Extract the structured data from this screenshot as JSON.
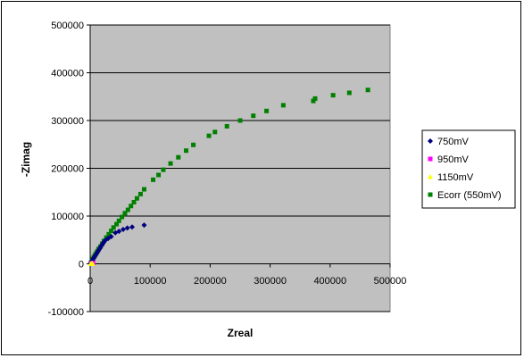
{
  "chart_data": {
    "type": "scatter",
    "title": "",
    "xlabel": "Zreal",
    "ylabel": "-Zimag",
    "xlim": [
      0,
      500000
    ],
    "ylim": [
      -100000,
      500000
    ],
    "x_ticks": [
      0,
      100000,
      200000,
      300000,
      400000,
      500000
    ],
    "y_ticks": [
      -100000,
      0,
      100000,
      200000,
      300000,
      400000,
      500000
    ],
    "x_tick_labels": [
      "0",
      "100000",
      "200000",
      "300000",
      "400000",
      "500000"
    ],
    "y_tick_labels": [
      "-100000",
      "0",
      "100000",
      "200000",
      "300000",
      "400000",
      "500000"
    ],
    "grid": "horizontal major gridlines",
    "plot_area_color": "#c0c0c0",
    "legend_position": "right",
    "series": [
      {
        "name": "750mV",
        "marker": "diamond",
        "color": "#000080",
        "points": [
          [
            1000,
            2000
          ],
          [
            2500,
            5000
          ],
          [
            4000,
            8000
          ],
          [
            5500,
            11000
          ],
          [
            7000,
            14000
          ],
          [
            9000,
            18000
          ],
          [
            11000,
            22000
          ],
          [
            13000,
            26000
          ],
          [
            15000,
            30000
          ],
          [
            17000,
            34000
          ],
          [
            19000,
            38000
          ],
          [
            21000,
            42000
          ],
          [
            23000,
            46000
          ],
          [
            26000,
            50000
          ],
          [
            30000,
            53000
          ],
          [
            35000,
            57000
          ],
          [
            42000,
            65000
          ],
          [
            48000,
            68000
          ],
          [
            55000,
            72000
          ],
          [
            62000,
            75000
          ],
          [
            70000,
            77000
          ],
          [
            90000,
            81000
          ]
        ]
      },
      {
        "name": "950mV",
        "marker": "square",
        "color": "#ff00ff",
        "points": [
          [
            2000,
            800
          ],
          [
            3500,
            1200
          ],
          [
            5000,
            1500
          ]
        ]
      },
      {
        "name": "1150mV",
        "marker": "triangle",
        "color": "#ffff00",
        "points": [
          [
            1000,
            300
          ],
          [
            2500,
            500
          ],
          [
            4000,
            700
          ]
        ]
      },
      {
        "name": "Ecorr (550mV)",
        "marker": "square",
        "color": "#008000",
        "points": [
          [
            1500,
            3000
          ],
          [
            3000,
            6000
          ],
          [
            4500,
            10000
          ],
          [
            6000,
            14000
          ],
          [
            8000,
            18000
          ],
          [
            10000,
            22000
          ],
          [
            12000,
            26000
          ],
          [
            14000,
            31000
          ],
          [
            17000,
            36000
          ],
          [
            20000,
            42000
          ],
          [
            23000,
            48000
          ],
          [
            27000,
            55000
          ],
          [
            31000,
            62000
          ],
          [
            35000,
            69000
          ],
          [
            39000,
            76000
          ],
          [
            44000,
            83000
          ],
          [
            48000,
            90000
          ],
          [
            53000,
            98000
          ],
          [
            58000,
            106000
          ],
          [
            63000,
            113000
          ],
          [
            68000,
            121000
          ],
          [
            73000,
            129000
          ],
          [
            78000,
            137000
          ],
          [
            84000,
            146000
          ],
          [
            90000,
            156000
          ],
          [
            105000,
            176000
          ],
          [
            114000,
            186000
          ],
          [
            122000,
            197000
          ],
          [
            134000,
            210000
          ],
          [
            147000,
            223000
          ],
          [
            160000,
            237000
          ],
          [
            172000,
            249000
          ],
          [
            198000,
            268000
          ],
          [
            208000,
            276000
          ],
          [
            228000,
            288000
          ],
          [
            250000,
            300000
          ],
          [
            272000,
            310000
          ],
          [
            294000,
            320000
          ],
          [
            322000,
            332000
          ],
          [
            372000,
            341000
          ],
          [
            375000,
            346000
          ],
          [
            405000,
            353000
          ],
          [
            432000,
            358000
          ],
          [
            463000,
            364000
          ]
        ]
      }
    ]
  }
}
